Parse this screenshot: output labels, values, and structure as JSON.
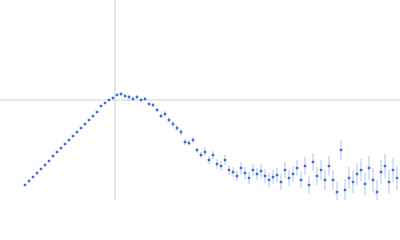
{
  "chart_data": {
    "type": "scatter",
    "color": "#3b6fd4",
    "error_color": "#9bb5e6",
    "xlim": [
      0,
      400
    ],
    "ylim": [
      0,
      200
    ],
    "reference_x": 115,
    "reference_y": 100,
    "x": [
      25,
      29,
      33,
      37,
      41,
      45,
      49,
      53,
      57,
      61,
      65,
      69,
      73,
      77,
      81,
      85,
      89,
      93,
      97,
      101,
      105,
      109,
      113,
      117,
      121,
      125,
      129,
      133,
      137,
      141,
      145,
      149,
      153,
      157,
      161,
      165,
      169,
      173,
      177,
      181,
      185,
      189,
      193,
      197,
      201,
      205,
      209,
      213,
      217,
      221,
      225,
      229,
      233,
      237,
      241,
      245,
      249,
      253,
      257,
      261,
      265,
      269,
      273,
      277,
      281,
      285,
      289,
      293,
      297,
      301,
      305,
      309,
      313,
      317,
      321,
      325,
      329,
      333,
      337,
      341,
      345,
      349,
      353,
      357,
      361,
      365,
      369,
      373,
      377,
      381,
      385,
      389,
      393,
      397
    ],
    "values": [
      15,
      19,
      23,
      27,
      31,
      35,
      39,
      44,
      48,
      52,
      56,
      60,
      64,
      68,
      72,
      76,
      80,
      84,
      88,
      94,
      97,
      100,
      102,
      105,
      106,
      104,
      103,
      101,
      103,
      100,
      101,
      96,
      95,
      90,
      84,
      86,
      80,
      76,
      72,
      68,
      58,
      57,
      60,
      50,
      45,
      48,
      40,
      45,
      36,
      34,
      40,
      30,
      28,
      24,
      32,
      27,
      22,
      30,
      26,
      29,
      24,
      20,
      23,
      25,
      18,
      30,
      22,
      26,
      32,
      20,
      34,
      15,
      38,
      24,
      30,
      20,
      34,
      20,
      8,
      50,
      10,
      22,
      18,
      26,
      30,
      16,
      32,
      20,
      8,
      28,
      34,
      18,
      30,
      22
    ],
    "errors": [
      1,
      1,
      1,
      1,
      1,
      1,
      1,
      1,
      1,
      1,
      1,
      1,
      1,
      1,
      1,
      1,
      1,
      1,
      1,
      1,
      1,
      1,
      1,
      1,
      2,
      2,
      2,
      2,
      2,
      2,
      2,
      2,
      2,
      2,
      2,
      3,
      3,
      3,
      3,
      3,
      3,
      3,
      3,
      3,
      3,
      4,
      4,
      4,
      5,
      5,
      5,
      5,
      5,
      5,
      6,
      6,
      6,
      6,
      6,
      7,
      7,
      7,
      7,
      7,
      8,
      8,
      8,
      8,
      8,
      8,
      9,
      9,
      9,
      9,
      10,
      10,
      10,
      10,
      10,
      10,
      11,
      11,
      11,
      11,
      11,
      11,
      12,
      12,
      12,
      12,
      12,
      12,
      12,
      12
    ]
  }
}
